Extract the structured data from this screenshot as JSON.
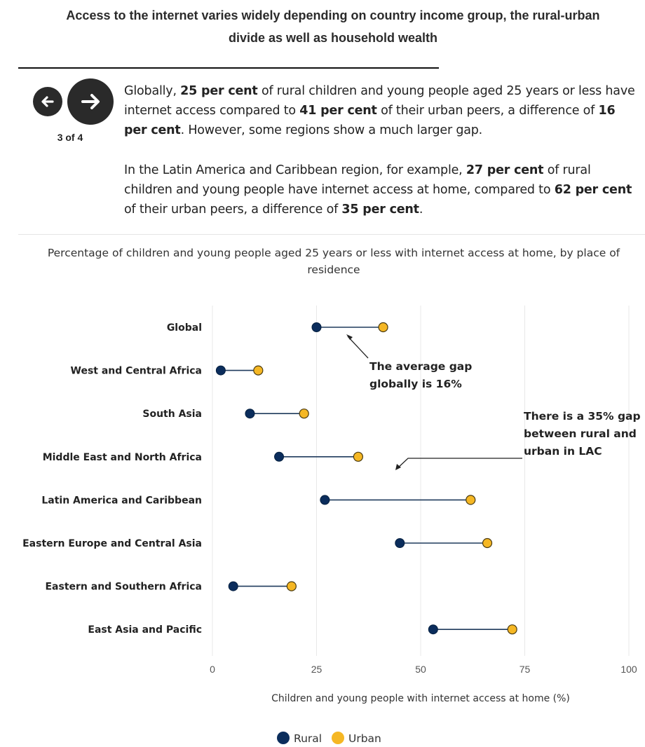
{
  "headline": {
    "line1": "Access to the internet varies widely depending on country income group, the rural-urban",
    "line2": "divide as well as household wealth"
  },
  "nav": {
    "prev_icon": "arrow-left-icon",
    "next_icon": "arrow-right-icon",
    "counter": "3 of 4"
  },
  "text": {
    "p1": [
      {
        "t": "Globally, "
      },
      {
        "t": "25 per cent",
        "b": true
      },
      {
        "t": " of rural children and young people aged 25 years or less have internet access compared to "
      },
      {
        "t": "41 per cent",
        "b": true
      },
      {
        "t": " of their urban peers, a difference of "
      },
      {
        "t": "16 per cent",
        "b": true
      },
      {
        "t": ". However, some regions show a much larger gap."
      }
    ],
    "p2": [
      {
        "t": "In the Latin America and Caribbean region, for example, "
      },
      {
        "t": "27 per cent",
        "b": true
      },
      {
        "t": " of rural children and young people have internet access at home, compared to "
      },
      {
        "t": "62 per cent",
        "b": true
      },
      {
        "t": " of their urban peers, a difference of "
      },
      {
        "t": "35 per cent",
        "b": true
      },
      {
        "t": "."
      }
    ]
  },
  "colors": {
    "rural": "#0b2d5c",
    "urban": "#f5b724",
    "connector": "#1f3a5c",
    "grid": "#e8e8e8"
  },
  "chart_data": {
    "type": "dumbbell",
    "title": "Percentage of children and young people aged 25 years or less with internet access at home, by place of residence",
    "xlabel": "Children and young people with internet access at home (%)",
    "ylabel": "",
    "xlim": [
      0,
      100
    ],
    "xticks": [
      0,
      25,
      50,
      75,
      100
    ],
    "categories": [
      "Global",
      "West and Central Africa",
      "South Asia",
      "Middle East and North Africa",
      "Latin America and Caribbean",
      "Eastern Europe and Central Asia",
      "Eastern and Southern Africa",
      "East Asia and Pacific"
    ],
    "series": [
      {
        "name": "Rural",
        "values": [
          25,
          2,
          9,
          16,
          27,
          45,
          5,
          53
        ]
      },
      {
        "name": "Urban",
        "values": [
          41,
          11,
          22,
          35,
          62,
          66,
          19,
          72
        ]
      }
    ],
    "annotations": [
      {
        "lines": [
          "The average gap",
          "globally is 16%"
        ],
        "points_to": "Global"
      },
      {
        "lines": [
          "There is a 35% gap",
          "between rural and",
          "urban in LAC"
        ],
        "points_to": "Latin America and Caribbean"
      }
    ],
    "legend": [
      "Rural",
      "Urban"
    ],
    "legend_position": "bottom-center",
    "grid": true
  }
}
